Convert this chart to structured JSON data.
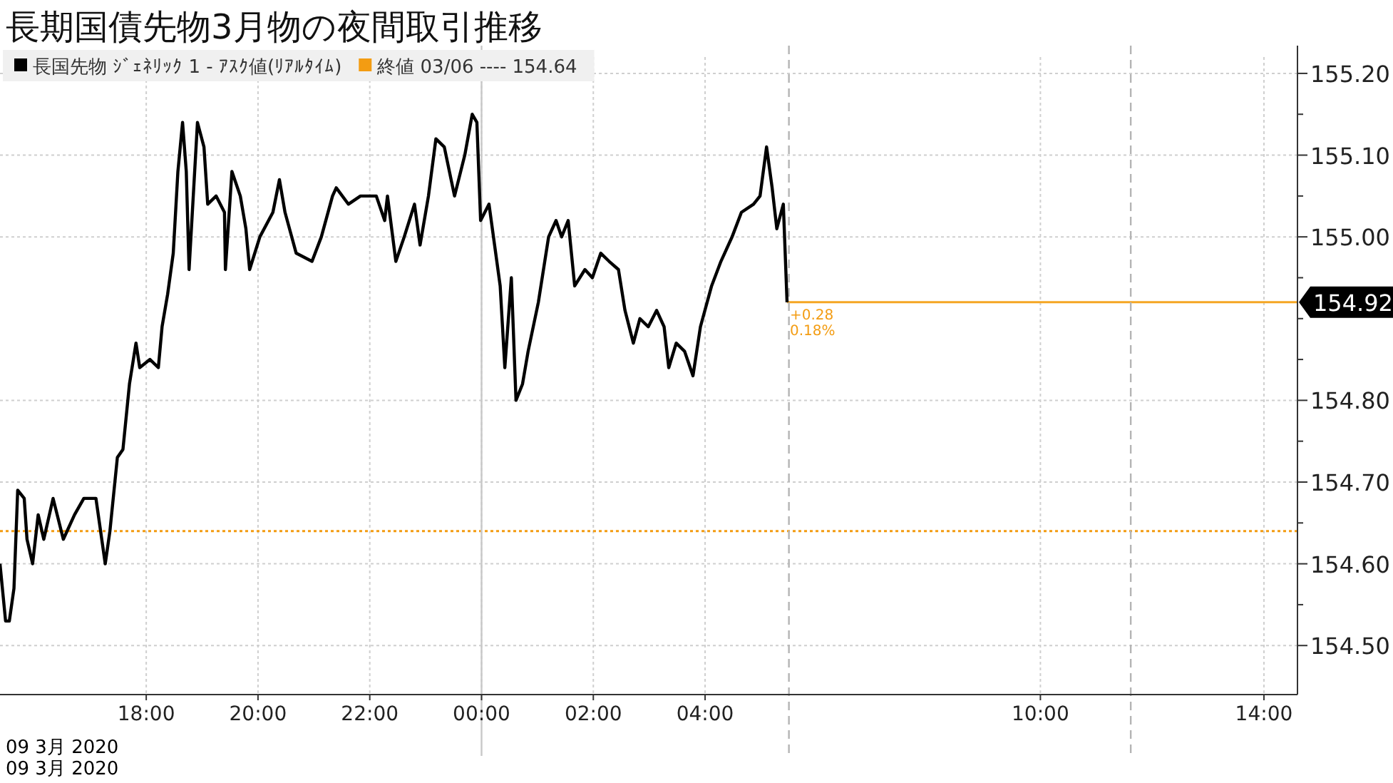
{
  "chart_data": {
    "type": "line",
    "title": "長期国債先物3月物の夜間取引推移",
    "legend": "top left",
    "grid": true,
    "marker": "none",
    "line_style": "solid",
    "xlim": [
      "2020-03-09T15:23",
      "2020-03-10T14:36"
    ],
    "ylim": [
      154.44,
      155.22
    ],
    "xticks": [
      {
        "value": "2020-03-09T18:00",
        "label": "18:00"
      },
      {
        "value": "2020-03-09T20:00",
        "label": "20:00"
      },
      {
        "value": "2020-03-09T22:00",
        "label": "22:00"
      },
      {
        "value": "2020-03-10T00:00",
        "label": "00:00"
      },
      {
        "value": "2020-03-10T02:00",
        "label": "02:00"
      },
      {
        "value": "2020-03-10T04:00",
        "label": "04:00"
      },
      {
        "value": "2020-03-10T10:00",
        "label": "10:00"
      },
      {
        "value": "2020-03-10T14:00",
        "label": "14:00"
      }
    ],
    "yticks": [
      {
        "value": 154.5,
        "label": "154.50"
      },
      {
        "value": 154.55,
        "label": null
      },
      {
        "value": 154.6,
        "label": "154.60"
      },
      {
        "value": 154.65,
        "label": null
      },
      {
        "value": 154.7,
        "label": "154.70"
      },
      {
        "value": 154.75,
        "label": null
      },
      {
        "value": 154.8,
        "label": "154.80"
      },
      {
        "value": 154.85,
        "label": null
      },
      {
        "value": 154.9,
        "label": null
      },
      {
        "value": 154.95,
        "label": null
      },
      {
        "value": 155.0,
        "label": "155.00"
      },
      {
        "value": 155.05,
        "label": null
      },
      {
        "value": 155.1,
        "label": "155.10"
      },
      {
        "value": 155.15,
        "label": null
      },
      {
        "value": 155.2,
        "label": "155.20"
      }
    ],
    "series": [
      {
        "name": "長国先物 ｼﾞｪﾈﾘｯｸ 1 - ｱｽｸ値(ﾘｱﾙﾀｲﾑ)",
        "color": "#000000",
        "x": [
          "2020-03-09T15:23",
          "2020-03-09T15:29",
          "2020-03-09T15:33",
          "2020-03-09T15:38",
          "2020-03-09T15:42",
          "2020-03-09T15:49",
          "2020-03-09T15:52",
          "2020-03-09T15:58",
          "2020-03-09T16:04",
          "2020-03-09T16:10",
          "2020-03-09T16:20",
          "2020-03-09T16:31",
          "2020-03-09T16:43",
          "2020-03-09T16:53",
          "2020-03-09T17:06",
          "2020-03-09T17:16",
          "2020-03-09T17:21",
          "2020-03-09T17:29",
          "2020-03-09T17:35",
          "2020-03-09T17:42",
          "2020-03-09T17:49",
          "2020-03-09T17:53",
          "2020-03-09T18:04",
          "2020-03-09T18:13",
          "2020-03-09T18:17",
          "2020-03-09T18:23",
          "2020-03-09T18:29",
          "2020-03-09T18:34",
          "2020-03-09T18:39",
          "2020-03-09T18:43",
          "2020-03-09T18:46",
          "2020-03-09T18:53",
          "2020-03-09T18:55",
          "2020-03-09T19:02",
          "2020-03-09T19:06",
          "2020-03-09T19:15",
          "2020-03-09T19:24",
          "2020-03-09T19:25",
          "2020-03-09T19:32",
          "2020-03-09T19:41",
          "2020-03-09T19:47",
          "2020-03-09T19:51",
          "2020-03-09T20:02",
          "2020-03-09T20:16",
          "2020-03-09T20:23",
          "2020-03-09T20:29",
          "2020-03-09T20:41",
          "2020-03-09T20:58",
          "2020-03-09T21:08",
          "2020-03-09T21:20",
          "2020-03-09T21:24",
          "2020-03-09T21:37",
          "2020-03-09T21:50",
          "2020-03-09T22:07",
          "2020-03-09T22:16",
          "2020-03-09T22:19",
          "2020-03-09T22:28",
          "2020-03-09T22:37",
          "2020-03-09T22:48",
          "2020-03-09T22:54",
          "2020-03-09T23:03",
          "2020-03-09T23:11",
          "2020-03-09T23:20",
          "2020-03-09T23:31",
          "2020-03-09T23:42",
          "2020-03-09T23:50",
          "2020-03-09T23:55",
          "2020-03-09T23:59",
          "2020-03-10T00:08",
          "2020-03-10T00:14",
          "2020-03-10T00:20",
          "2020-03-10T00:25",
          "2020-03-10T00:32",
          "2020-03-10T00:37",
          "2020-03-10T00:44",
          "2020-03-10T00:50",
          "2020-03-10T01:01",
          "2020-03-10T01:12",
          "2020-03-10T01:20",
          "2020-03-10T01:26",
          "2020-03-10T01:33",
          "2020-03-10T01:40",
          "2020-03-10T01:51",
          "2020-03-10T01:59",
          "2020-03-10T02:08",
          "2020-03-10T02:17",
          "2020-03-10T02:27",
          "2020-03-10T02:34",
          "2020-03-10T02:43",
          "2020-03-10T02:50",
          "2020-03-10T02:59",
          "2020-03-10T03:08",
          "2020-03-10T03:16",
          "2020-03-10T03:21",
          "2020-03-10T03:29",
          "2020-03-10T03:38",
          "2020-03-10T03:47",
          "2020-03-10T03:55",
          "2020-03-10T04:07",
          "2020-03-10T04:17",
          "2020-03-10T04:29",
          "2020-03-10T04:39",
          "2020-03-10T04:52",
          "2020-03-10T04:59",
          "2020-03-10T05:06",
          "2020-03-10T05:12",
          "2020-03-10T05:17",
          "2020-03-10T05:24",
          "2020-03-10T05:28"
        ],
        "values": [
          154.6,
          154.53,
          154.53,
          154.57,
          154.69,
          154.68,
          154.63,
          154.6,
          154.66,
          154.63,
          154.68,
          154.63,
          154.66,
          154.68,
          154.68,
          154.6,
          154.64,
          154.73,
          154.74,
          154.82,
          154.87,
          154.84,
          154.85,
          154.84,
          154.89,
          154.93,
          154.98,
          155.08,
          155.14,
          155.08,
          154.96,
          155.1,
          155.14,
          155.11,
          155.04,
          155.05,
          155.03,
          154.96,
          155.08,
          155.05,
          155.01,
          154.96,
          155.0,
          155.03,
          155.07,
          155.03,
          154.98,
          154.97,
          155.0,
          155.05,
          155.06,
          155.04,
          155.05,
          155.05,
          155.02,
          155.05,
          154.97,
          155.0,
          155.04,
          154.99,
          155.05,
          155.12,
          155.11,
          155.05,
          155.1,
          155.15,
          155.14,
          155.02,
          155.04,
          154.99,
          154.94,
          154.84,
          154.95,
          154.8,
          154.82,
          154.86,
          154.92,
          155.0,
          155.02,
          155.0,
          155.02,
          154.94,
          154.96,
          154.95,
          154.98,
          154.97,
          154.96,
          154.91,
          154.87,
          154.9,
          154.89,
          154.91,
          154.89,
          154.84,
          154.87,
          154.86,
          154.83,
          154.89,
          154.94,
          154.97,
          155.0,
          155.03,
          155.04,
          155.05,
          155.11,
          155.06,
          155.01,
          155.04,
          154.92
        ]
      }
    ],
    "ref_lines": [
      {
        "axis": "y",
        "value": 154.64,
        "label": "終値 03/06 ---- 154.64",
        "color": "#f39c12",
        "line_style": "dotted"
      },
      {
        "axis": "y",
        "value": 154.92,
        "label": "154.92",
        "color": "#f5a623",
        "line_style": "solid"
      },
      {
        "axis": "x",
        "value": "2020-03-10T00:00",
        "color": "#c8c8c8",
        "line_style": "solid"
      },
      {
        "axis": "x",
        "value": "2020-03-10T05:30",
        "color": "#b4b4b4",
        "line_style": "dashed"
      },
      {
        "axis": "x",
        "value": "2020-03-10T11:37",
        "color": "#b4b4b4",
        "line_style": "dashed"
      }
    ],
    "annotations": [
      {
        "text": "+0.28",
        "x": "2020-03-10T05:28",
        "y": 154.92
      },
      {
        "text": "0.18%",
        "x": "2020-03-10T05:28",
        "y": 154.92
      },
      "09 3月 2020",
      "09 3月 2020"
    ]
  }
}
